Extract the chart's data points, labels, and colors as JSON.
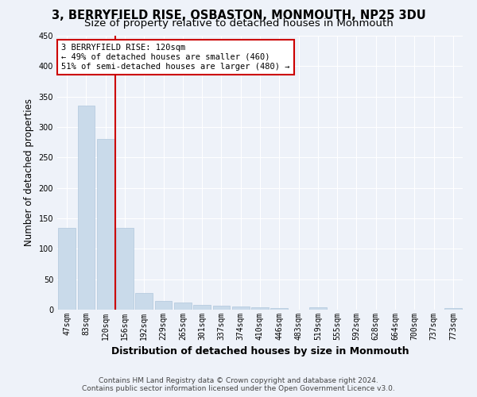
{
  "title": "3, BERRYFIELD RISE, OSBASTON, MONMOUTH, NP25 3DU",
  "subtitle": "Size of property relative to detached houses in Monmouth",
  "xlabel": "Distribution of detached houses by size in Monmouth",
  "ylabel": "Number of detached properties",
  "categories": [
    "47sqm",
    "83sqm",
    "120sqm",
    "156sqm",
    "192sqm",
    "229sqm",
    "265sqm",
    "301sqm",
    "337sqm",
    "374sqm",
    "410sqm",
    "446sqm",
    "483sqm",
    "519sqm",
    "555sqm",
    "592sqm",
    "628sqm",
    "664sqm",
    "700sqm",
    "737sqm",
    "773sqm"
  ],
  "values": [
    135,
    335,
    280,
    135,
    27,
    15,
    12,
    8,
    6,
    5,
    4,
    3,
    0,
    4,
    0,
    0,
    0,
    0,
    0,
    0,
    3
  ],
  "bar_color": "#c9daea",
  "bar_edge_color": "#b0c8dc",
  "highlight_index": 2,
  "highlight_color": "#cc0000",
  "annotation_text": "3 BERRYFIELD RISE: 120sqm\n← 49% of detached houses are smaller (460)\n51% of semi-detached houses are larger (480) →",
  "annotation_box_color": "#ffffff",
  "annotation_border_color": "#cc0000",
  "footer1": "Contains HM Land Registry data © Crown copyright and database right 2024.",
  "footer2": "Contains public sector information licensed under the Open Government Licence v3.0.",
  "bg_color": "#eef2f9",
  "ylim": [
    0,
    450
  ],
  "grid_color": "#ffffff",
  "title_fontsize": 10.5,
  "subtitle_fontsize": 9.5,
  "tick_fontsize": 7,
  "ylabel_fontsize": 8.5,
  "xlabel_fontsize": 9,
  "footer_fontsize": 6.5,
  "annotation_fontsize": 7.5
}
